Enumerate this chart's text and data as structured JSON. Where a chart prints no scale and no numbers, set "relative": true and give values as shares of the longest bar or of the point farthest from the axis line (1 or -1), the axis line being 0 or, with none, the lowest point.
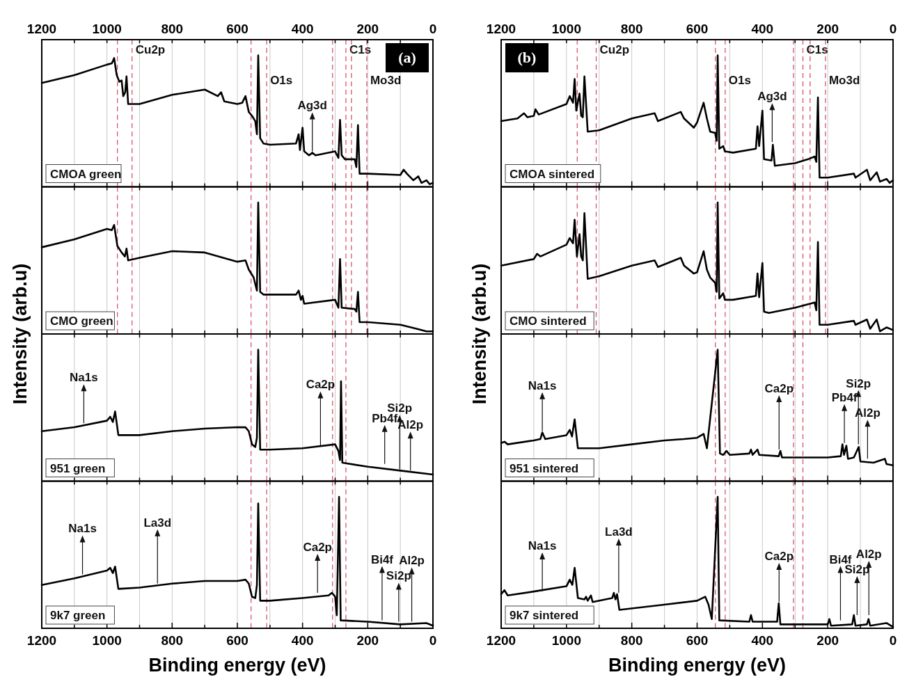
{
  "chart_data": [
    {
      "type": "line",
      "title": "(a)",
      "subtitle": "CMOA green",
      "relative": true,
      "grid": "x",
      "line_style": "solid",
      "xlim": [
        1200,
        0
      ],
      "xticks": [
        1200,
        {
          "value": 1100,
          "label": null
        },
        1000,
        {
          "value": 900,
          "label": null
        },
        800,
        {
          "value": 700,
          "label": null
        },
        600,
        {
          "value": 500,
          "label": null
        },
        400,
        {
          "value": 300,
          "label": null
        },
        200,
        {
          "value": 100,
          "label": null
        },
        0
      ],
      "ylabel": "Intensity (arb.u)",
      "x": [
        1200,
        1100,
        1000,
        985,
        978,
        970,
        962,
        955,
        950,
        944,
        940,
        935,
        900,
        800,
        700,
        660,
        650,
        640,
        600,
        585,
        575,
        565,
        555,
        545,
        540,
        536,
        530,
        520,
        500,
        420,
        412,
        408,
        400,
        395,
        380,
        370,
        360,
        300,
        290,
        285,
        280,
        270,
        240,
        235,
        230,
        225,
        200,
        100,
        90,
        80,
        60,
        45,
        35,
        20,
        10,
        0
      ],
      "series": [
        {
          "color": "#000000",
          "values": [
            0.79,
            0.85,
            0.93,
            0.94,
            0.98,
            0.85,
            0.8,
            0.81,
            0.69,
            0.72,
            0.84,
            0.63,
            0.63,
            0.7,
            0.74,
            0.69,
            0.72,
            0.65,
            0.63,
            0.64,
            0.69,
            0.57,
            0.54,
            0.5,
            0.4,
            1.0,
            0.37,
            0.33,
            0.32,
            0.33,
            0.4,
            0.28,
            0.45,
            0.27,
            0.24,
            0.26,
            0.24,
            0.27,
            0.22,
            0.51,
            0.24,
            0.21,
            0.21,
            0.15,
            0.47,
            0.1,
            0.1,
            0.09,
            0.13,
            0.1,
            0.05,
            0.08,
            0.03,
            0.05,
            0.02,
            0.03
          ]
        }
      ],
      "ref_lines": [
        {
          "axis": "x",
          "value": 968,
          "color": "#d9536b",
          "line_style": "dashed"
        },
        {
          "axis": "x",
          "value": 923,
          "label": "Cu2p",
          "color": "#d9536b",
          "line_style": "dashed"
        },
        {
          "axis": "x",
          "value": 558,
          "color": "#d9536b",
          "line_style": "dashed"
        },
        {
          "axis": "x",
          "value": 510,
          "label": "O1s",
          "color": "#d9536b",
          "line_style": "dashed"
        },
        {
          "axis": "x",
          "value": 308,
          "color": "#d9536b",
          "line_style": "dashed"
        },
        {
          "axis": "x",
          "value": 267,
          "label": "C1s",
          "color": "#d9536b",
          "line_style": "dashed"
        },
        {
          "axis": "x",
          "value": 250,
          "color": "#d9536b",
          "line_style": "dashed"
        },
        {
          "axis": "x",
          "value": 203,
          "label": "Mo3d",
          "color": "#d9536b",
          "line_style": "dashed"
        }
      ],
      "annotations": [
        {
          "text": "Ag3d",
          "x": 370,
          "y": 0.26
        }
      ]
    },
    {
      "type": "line",
      "subtitle": "CMO green",
      "relative": true,
      "grid": "x",
      "line_style": "solid",
      "xlim": [
        1200,
        0
      ],
      "xticks": [
        1200,
        {
          "value": 1100,
          "label": null
        },
        1000,
        {
          "value": 900,
          "label": null
        },
        800,
        {
          "value": 700,
          "label": null
        },
        600,
        {
          "value": 500,
          "label": null
        },
        400,
        {
          "value": 300,
          "label": null
        },
        200,
        {
          "value": 100,
          "label": null
        },
        0
      ],
      "tick_labels": false,
      "x": [
        1200,
        1100,
        1000,
        985,
        978,
        968,
        955,
        945,
        940,
        935,
        900,
        800,
        700,
        600,
        575,
        565,
        550,
        540,
        536,
        530,
        520,
        420,
        412,
        405,
        400,
        395,
        300,
        290,
        285,
        280,
        240,
        235,
        230,
        225,
        200,
        100,
        50,
        20,
        0
      ],
      "series": [
        {
          "color": "#000000",
          "values": [
            0.66,
            0.72,
            0.8,
            0.79,
            0.83,
            0.67,
            0.62,
            0.59,
            0.65,
            0.56,
            0.58,
            0.63,
            0.62,
            0.55,
            0.56,
            0.49,
            0.43,
            0.33,
            1.0,
            0.32,
            0.3,
            0.3,
            0.33,
            0.26,
            0.29,
            0.23,
            0.26,
            0.2,
            0.57,
            0.2,
            0.19,
            0.17,
            0.32,
            0.09,
            0.09,
            0.07,
            0.04,
            0.02,
            0.02
          ]
        }
      ],
      "ref_lines": [
        {
          "axis": "x",
          "value": 968,
          "color": "#d9536b",
          "line_style": "dashed"
        },
        {
          "axis": "x",
          "value": 923,
          "color": "#d9536b",
          "line_style": "dashed"
        },
        {
          "axis": "x",
          "value": 558,
          "color": "#d9536b",
          "line_style": "dashed"
        },
        {
          "axis": "x",
          "value": 510,
          "color": "#d9536b",
          "line_style": "dashed"
        },
        {
          "axis": "x",
          "value": 308,
          "color": "#d9536b",
          "line_style": "dashed"
        },
        {
          "axis": "x",
          "value": 267,
          "color": "#d9536b",
          "line_style": "dashed"
        },
        {
          "axis": "x",
          "value": 250,
          "color": "#d9536b",
          "line_style": "dashed"
        },
        {
          "axis": "x",
          "value": 203,
          "color": "#d9536b",
          "line_style": "dashed"
        }
      ]
    },
    {
      "type": "line",
      "subtitle": "951 green",
      "relative": true,
      "grid": "x",
      "line_style": "solid",
      "xlim": [
        1200,
        0
      ],
      "xticks": [
        1200,
        {
          "value": 1100,
          "label": null
        },
        1000,
        {
          "value": 900,
          "label": null
        },
        800,
        {
          "value": 700,
          "label": null
        },
        600,
        {
          "value": 500,
          "label": null
        },
        400,
        {
          "value": 300,
          "label": null
        },
        200,
        {
          "value": 100,
          "label": null
        },
        0
      ],
      "tick_labels": false,
      "x": [
        1200,
        1100,
        1000,
        990,
        982,
        975,
        965,
        900,
        800,
        700,
        600,
        575,
        565,
        555,
        545,
        540,
        536,
        530,
        500,
        400,
        300,
        290,
        285,
        282,
        278,
        200,
        100,
        0
      ],
      "series": [
        {
          "color": "#000000",
          "values": [
            0.38,
            0.41,
            0.46,
            0.49,
            0.45,
            0.53,
            0.35,
            0.35,
            0.38,
            0.4,
            0.41,
            0.41,
            0.38,
            0.28,
            0.26,
            0.33,
            1.0,
            0.24,
            0.24,
            0.25,
            0.28,
            0.23,
            0.16,
            0.76,
            0.14,
            0.11,
            0.08,
            0.05
          ]
        }
      ],
      "ref_lines": [
        {
          "axis": "x",
          "value": 558,
          "color": "#d9536b",
          "line_style": "dashed"
        },
        {
          "axis": "x",
          "value": 510,
          "color": "#d9536b",
          "line_style": "dashed"
        },
        {
          "axis": "x",
          "value": 308,
          "color": "#d9536b",
          "line_style": "dashed"
        },
        {
          "axis": "x",
          "value": 267,
          "color": "#d9536b",
          "line_style": "dashed"
        }
      ],
      "annotations": [
        {
          "text": "Na1s",
          "x": 1071,
          "y": 0.43
        },
        {
          "text": "Ca2p",
          "x": 345,
          "y": 0.26
        },
        {
          "text": "Pb4f",
          "x": 148,
          "y": 0.12
        },
        {
          "text": "Si2p",
          "x": 102,
          "y": 0.08
        },
        {
          "text": "Al2p",
          "x": 69,
          "y": 0.07
        }
      ]
    },
    {
      "type": "line",
      "subtitle": "9k7 green",
      "relative": true,
      "grid": "x",
      "line_style": "solid",
      "xlim": [
        1200,
        0
      ],
      "xticks": [
        1200,
        {
          "value": 1100,
          "label": null
        },
        1000,
        {
          "value": 900,
          "label": null
        },
        800,
        {
          "value": 700,
          "label": null
        },
        600,
        {
          "value": 500,
          "label": null
        },
        400,
        {
          "value": 300,
          "label": null
        },
        200,
        {
          "value": 100,
          "label": null
        },
        0
      ],
      "xlabel": "Binding energy (eV)",
      "x": [
        1200,
        1100,
        1000,
        990,
        982,
        975,
        965,
        900,
        800,
        700,
        600,
        575,
        565,
        555,
        545,
        540,
        536,
        530,
        500,
        400,
        320,
        310,
        300,
        295,
        288,
        283,
        200,
        100,
        20,
        0
      ],
      "series": [
        {
          "color": "#000000",
          "values": [
            0.33,
            0.38,
            0.44,
            0.46,
            0.42,
            0.47,
            0.3,
            0.31,
            0.34,
            0.36,
            0.36,
            0.37,
            0.34,
            0.24,
            0.23,
            0.33,
            0.95,
            0.21,
            0.21,
            0.23,
            0.25,
            0.27,
            0.24,
            0.1,
            1.0,
            0.06,
            0.05,
            0.03,
            0.04,
            0.02
          ]
        }
      ],
      "ref_lines": [
        {
          "axis": "x",
          "value": 558,
          "color": "#d9536b",
          "line_style": "dashed"
        },
        {
          "axis": "x",
          "value": 510,
          "color": "#d9536b",
          "line_style": "dashed"
        },
        {
          "axis": "x",
          "value": 308,
          "color": "#d9536b",
          "line_style": "dashed"
        },
        {
          "axis": "x",
          "value": 267,
          "color": "#d9536b",
          "line_style": "dashed"
        }
      ],
      "annotations": [
        {
          "text": "Na1s",
          "x": 1075,
          "y": 0.4
        },
        {
          "text": "La3d",
          "x": 845,
          "y": 0.33
        },
        {
          "text": "Ca2p",
          "x": 354,
          "y": 0.26
        },
        {
          "text": "Bi4f",
          "x": 156,
          "y": 0.05
        },
        {
          "text": "Si2p",
          "x": 105,
          "y": 0.04
        },
        {
          "text": "Al2p",
          "x": 65,
          "y": 0.04
        }
      ]
    },
    {
      "type": "line",
      "title": "(b)",
      "subtitle": "CMOA sintered",
      "relative": true,
      "grid": "x",
      "line_style": "solid",
      "xlim": [
        1200,
        0
      ],
      "xticks": [
        1200,
        {
          "value": 1100,
          "label": null
        },
        1000,
        {
          "value": 900,
          "label": null
        },
        800,
        {
          "value": 700,
          "label": null
        },
        600,
        {
          "value": 500,
          "label": null
        },
        400,
        {
          "value": 300,
          "label": null
        },
        200,
        {
          "value": 100,
          "label": null
        },
        0
      ],
      "ylabel": "Intensity (arb.u)",
      "x": [
        1200,
        1150,
        1130,
        1120,
        1100,
        1095,
        1085,
        1000,
        990,
        980,
        975,
        970,
        960,
        955,
        950,
        945,
        935,
        900,
        800,
        730,
        720,
        650,
        640,
        610,
        600,
        580,
        570,
        560,
        545,
        540,
        537,
        532,
        520,
        515,
        490,
        420,
        415,
        410,
        400,
        395,
        372,
        368,
        362,
        300,
        260,
        240,
        235,
        230,
        225,
        200,
        120,
        115,
        80,
        70,
        50,
        40,
        20,
        10,
        0
      ],
      "series": [
        {
          "color": "#000000",
          "values": [
            0.5,
            0.52,
            0.56,
            0.53,
            0.54,
            0.59,
            0.55,
            0.63,
            0.69,
            0.64,
            0.82,
            0.58,
            0.71,
            0.54,
            0.53,
            0.84,
            0.42,
            0.43,
            0.52,
            0.56,
            0.5,
            0.57,
            0.52,
            0.45,
            0.49,
            0.64,
            0.52,
            0.42,
            0.41,
            0.35,
            1.0,
            0.29,
            0.31,
            0.27,
            0.26,
            0.29,
            0.46,
            0.31,
            0.58,
            0.21,
            0.2,
            0.32,
            0.16,
            0.18,
            0.21,
            0.23,
            0.19,
            0.68,
            0.07,
            0.07,
            0.1,
            0.07,
            0.13,
            0.05,
            0.11,
            0.04,
            0.06,
            0.03,
            0.05
          ]
        }
      ],
      "ref_lines": [
        {
          "axis": "x",
          "value": 967,
          "color": "#d9536b",
          "line_style": "dashed"
        },
        {
          "axis": "x",
          "value": 909,
          "label": "Cu2p",
          "color": "#d9536b",
          "line_style": "dashed"
        },
        {
          "axis": "x",
          "value": 544,
          "color": "#d9536b",
          "line_style": "dashed"
        },
        {
          "axis": "x",
          "value": 514,
          "label": "O1s",
          "color": "#d9536b",
          "line_style": "dashed"
        },
        {
          "axis": "x",
          "value": 305,
          "color": "#d9536b",
          "line_style": "dashed"
        },
        {
          "axis": "x",
          "value": 276,
          "label": "C1s",
          "color": "#d9536b",
          "line_style": "dashed"
        },
        {
          "axis": "x",
          "value": 254,
          "color": "#d9536b",
          "line_style": "dashed"
        },
        {
          "axis": "x",
          "value": 207,
          "label": "Mo3d",
          "color": "#d9536b",
          "line_style": "dashed"
        }
      ],
      "annotations": [
        {
          "text": "Ag3d",
          "x": 370,
          "y": 0.33
        }
      ]
    },
    {
      "type": "line",
      "subtitle": "CMO sintered",
      "relative": true,
      "grid": "x",
      "line_style": "solid",
      "xlim": [
        1200,
        0
      ],
      "xticks": [
        1200,
        {
          "value": 1100,
          "label": null
        },
        1000,
        {
          "value": 900,
          "label": null
        },
        800,
        {
          "value": 700,
          "label": null
        },
        600,
        {
          "value": 500,
          "label": null
        },
        400,
        {
          "value": 300,
          "label": null
        },
        200,
        {
          "value": 100,
          "label": null
        },
        0
      ],
      "tick_labels": false,
      "x": [
        1200,
        1100,
        1090,
        1080,
        1000,
        990,
        980,
        975,
        968,
        960,
        955,
        950,
        945,
        935,
        900,
        800,
        730,
        720,
        650,
        640,
        610,
        600,
        580,
        570,
        560,
        545,
        540,
        537,
        532,
        520,
        515,
        490,
        420,
        415,
        410,
        400,
        395,
        380,
        300,
        240,
        235,
        230,
        225,
        200,
        120,
        115,
        80,
        70,
        50,
        40,
        20,
        0
      ],
      "series": [
        {
          "color": "#000000",
          "values": [
            0.52,
            0.57,
            0.61,
            0.59,
            0.68,
            0.73,
            0.69,
            0.87,
            0.59,
            0.76,
            0.59,
            0.56,
            0.92,
            0.42,
            0.44,
            0.52,
            0.56,
            0.51,
            0.58,
            0.52,
            0.46,
            0.47,
            0.63,
            0.49,
            0.43,
            0.39,
            0.32,
            1.0,
            0.27,
            0.31,
            0.26,
            0.26,
            0.29,
            0.46,
            0.28,
            0.54,
            0.17,
            0.16,
            0.2,
            0.24,
            0.18,
            0.7,
            0.07,
            0.07,
            0.1,
            0.07,
            0.11,
            0.04,
            0.11,
            0.02,
            0.05,
            0.03
          ]
        }
      ],
      "ref_lines": [
        {
          "axis": "x",
          "value": 967,
          "color": "#d9536b",
          "line_style": "dashed"
        },
        {
          "axis": "x",
          "value": 909,
          "color": "#d9536b",
          "line_style": "dashed"
        },
        {
          "axis": "x",
          "value": 544,
          "color": "#d9536b",
          "line_style": "dashed"
        },
        {
          "axis": "x",
          "value": 514,
          "color": "#d9536b",
          "line_style": "dashed"
        },
        {
          "axis": "x",
          "value": 305,
          "color": "#d9536b",
          "line_style": "dashed"
        },
        {
          "axis": "x",
          "value": 276,
          "color": "#d9536b",
          "line_style": "dashed"
        },
        {
          "axis": "x",
          "value": 254,
          "color": "#d9536b",
          "line_style": "dashed"
        },
        {
          "axis": "x",
          "value": 207,
          "color": "#d9536b",
          "line_style": "dashed"
        }
      ]
    },
    {
      "type": "line",
      "subtitle": "951 sintered",
      "relative": true,
      "grid": "x",
      "line_style": "solid",
      "xlim": [
        1200,
        0
      ],
      "xticks": [
        1200,
        {
          "value": 1100,
          "label": null
        },
        1000,
        {
          "value": 900,
          "label": null
        },
        800,
        {
          "value": 700,
          "label": null
        },
        600,
        {
          "value": 500,
          "label": null
        },
        400,
        {
          "value": 300,
          "label": null
        },
        200,
        {
          "value": 100,
          "label": null
        },
        0
      ],
      "tick_labels": false,
      "x": [
        1200,
        1190,
        1180,
        1100,
        1080,
        1074,
        1065,
        1000,
        990,
        983,
        975,
        965,
        900,
        800,
        700,
        640,
        600,
        580,
        570,
        537,
        530,
        520,
        510,
        500,
        440,
        435,
        430,
        415,
        410,
        350,
        345,
        340,
        290,
        200,
        160,
        155,
        150,
        143,
        138,
        120,
        105,
        100,
        60,
        25,
        20,
        0
      ],
      "series": [
        {
          "color": "#000000",
          "values": [
            0.29,
            0.3,
            0.28,
            0.31,
            0.32,
            0.37,
            0.32,
            0.35,
            0.39,
            0.34,
            0.47,
            0.25,
            0.25,
            0.28,
            0.31,
            0.32,
            0.33,
            0.36,
            0.25,
            1.0,
            0.21,
            0.2,
            0.23,
            0.2,
            0.21,
            0.24,
            0.2,
            0.24,
            0.2,
            0.19,
            0.23,
            0.18,
            0.18,
            0.18,
            0.19,
            0.28,
            0.2,
            0.27,
            0.17,
            0.18,
            0.26,
            0.15,
            0.14,
            0.17,
            0.13,
            0.12
          ]
        }
      ],
      "ref_lines": [
        {
          "axis": "x",
          "value": 544,
          "color": "#d9536b",
          "line_style": "dashed"
        },
        {
          "axis": "x",
          "value": 514,
          "color": "#d9536b",
          "line_style": "dashed"
        },
        {
          "axis": "x",
          "value": 305,
          "color": "#d9536b",
          "line_style": "dashed"
        },
        {
          "axis": "x",
          "value": 276,
          "color": "#d9536b",
          "line_style": "dashed"
        }
      ],
      "annotations": [
        {
          "text": "Na1s",
          "x": 1074,
          "y": 0.37
        },
        {
          "text": "Ca2p",
          "x": 349,
          "y": 0.23
        },
        {
          "text": "Pb4f",
          "x": 149,
          "y": 0.28
        },
        {
          "text": "Si2p",
          "x": 106,
          "y": 0.27
        },
        {
          "text": "Al2p",
          "x": 78,
          "y": 0.16
        }
      ]
    },
    {
      "type": "line",
      "subtitle": "9k7 sintered",
      "relative": true,
      "grid": "x",
      "line_style": "solid",
      "xlim": [
        1200,
        0
      ],
      "xticks": [
        1200,
        {
          "value": 1100,
          "label": null
        },
        1000,
        {
          "value": 900,
          "label": null
        },
        800,
        {
          "value": 700,
          "label": null
        },
        600,
        {
          "value": 500,
          "label": null
        },
        400,
        {
          "value": 300,
          "label": null
        },
        200,
        {
          "value": 100,
          "label": null
        },
        0
      ],
      "xlabel": "Binding energy (eV)",
      "x": [
        1200,
        1190,
        1180,
        1100,
        1000,
        990,
        982,
        975,
        965,
        945,
        940,
        935,
        925,
        920,
        860,
        855,
        850,
        845,
        838,
        700,
        600,
        575,
        565,
        555,
        537,
        532,
        440,
        435,
        430,
        355,
        350,
        345,
        300,
        200,
        195,
        190,
        125,
        120,
        115,
        80,
        75,
        70,
        20,
        0
      ],
      "series": [
        {
          "color": "#000000",
          "values": [
            0.26,
            0.29,
            0.25,
            0.28,
            0.32,
            0.37,
            0.33,
            0.46,
            0.23,
            0.22,
            0.24,
            0.21,
            0.25,
            0.2,
            0.23,
            0.27,
            0.22,
            0.26,
            0.14,
            0.18,
            0.21,
            0.24,
            0.18,
            0.07,
            1.0,
            0.06,
            0.05,
            0.1,
            0.05,
            0.05,
            0.19,
            0.03,
            0.03,
            0.03,
            0.07,
            0.02,
            0.03,
            0.1,
            0.02,
            0.03,
            0.07,
            0.02,
            0.04,
            0.01
          ]
        }
      ],
      "ref_lines": [
        {
          "axis": "x",
          "value": 544,
          "color": "#d9536b",
          "line_style": "dashed"
        },
        {
          "axis": "x",
          "value": 514,
          "color": "#d9536b",
          "line_style": "dashed"
        },
        {
          "axis": "x",
          "value": 305,
          "color": "#d9536b",
          "line_style": "dashed"
        },
        {
          "axis": "x",
          "value": 276,
          "color": "#d9536b",
          "line_style": "dashed"
        }
      ],
      "annotations": [
        {
          "text": "Na1s",
          "x": 1074,
          "y": 0.27
        },
        {
          "text": "La3d",
          "x": 840,
          "y": 0.26
        },
        {
          "text": "Ca2p",
          "x": 349,
          "y": 0.19
        },
        {
          "text": "Bi4f",
          "x": 161,
          "y": 0.05
        },
        {
          "text": "Si2p",
          "x": 110,
          "y": 0.09
        },
        {
          "text": "Al2p",
          "x": 74,
          "y": 0.09
        }
      ]
    }
  ]
}
